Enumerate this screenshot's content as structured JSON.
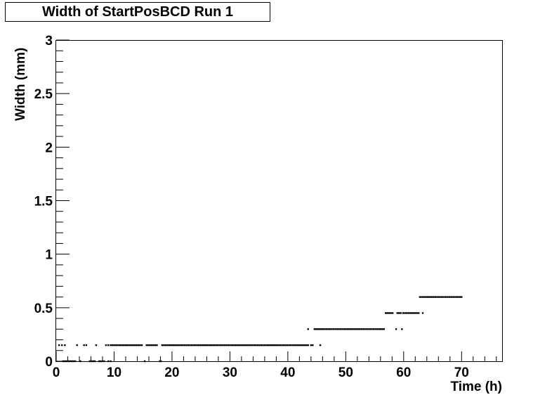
{
  "title": "Width of StartPosBCD Run 1",
  "chart_data": {
    "type": "scatter",
    "title": "Width of StartPosBCD Run 1",
    "xlabel": "Time (h)",
    "ylabel": "Width (mm)",
    "xlim": [
      0,
      77
    ],
    "ylim": [
      0,
      3
    ],
    "x_ticks": [
      0,
      10,
      20,
      30,
      40,
      50,
      60,
      70
    ],
    "y_ticks": [
      0,
      0.5,
      1,
      1.5,
      2,
      2.5,
      3
    ],
    "x_tick_labels": [
      "0",
      "10",
      "20",
      "30",
      "40",
      "50",
      "60",
      "70"
    ],
    "y_tick_labels": [
      "0",
      "0.5",
      "1",
      "1.5",
      "2",
      "2.5",
      "3"
    ],
    "grid": false,
    "marker_color": "#000000",
    "series": [
      {
        "segments": [
          {
            "x_start": 0.5,
            "x_end": 1.8,
            "step": 0.5,
            "y": 0.15
          },
          {
            "x_start": 3.6,
            "x_end": 3.8,
            "step": 0.5,
            "y": 0.15
          },
          {
            "x_start": 4.8,
            "x_end": 5.2,
            "step": 0.4,
            "y": 0.15
          },
          {
            "x_start": 6.9,
            "x_end": 6.9,
            "step": 0.5,
            "y": 0.15
          },
          {
            "x_start": 8.6,
            "x_end": 9.4,
            "step": 0.4,
            "y": 0.15
          },
          {
            "x_start": 9.7,
            "x_end": 15.0,
            "step": 0.3,
            "y": 0.15
          },
          {
            "x_start": 15.6,
            "x_end": 17.6,
            "step": 0.3,
            "y": 0.15
          },
          {
            "x_start": 18.3,
            "x_end": 43.5,
            "step": 0.3,
            "y": 0.15
          },
          {
            "x_start": 44.0,
            "x_end": 44.3,
            "step": 0.3,
            "y": 0.15
          },
          {
            "x_start": 45.6,
            "x_end": 45.6,
            "step": 0.3,
            "y": 0.15
          },
          {
            "x_start": 1.2,
            "x_end": 3.3,
            "step": 0.3,
            "y": 0.0
          },
          {
            "x_start": 4.2,
            "x_end": 4.2,
            "step": 0.3,
            "y": 0.0
          },
          {
            "x_start": 5.8,
            "x_end": 6.8,
            "step": 0.3,
            "y": 0.0
          },
          {
            "x_start": 7.4,
            "x_end": 8.4,
            "step": 0.3,
            "y": 0.0
          },
          {
            "x_start": 9.0,
            "x_end": 9.4,
            "step": 0.4,
            "y": 0.0
          },
          {
            "x_start": 15.3,
            "x_end": 15.3,
            "step": 0.3,
            "y": 0.0
          },
          {
            "x_start": 17.9,
            "x_end": 18.1,
            "step": 0.2,
            "y": 0.0
          },
          {
            "x_start": 43.5,
            "x_end": 43.5,
            "step": 0.3,
            "y": 0.3
          },
          {
            "x_start": 44.6,
            "x_end": 56.8,
            "step": 0.3,
            "y": 0.3
          },
          {
            "x_start": 58.7,
            "x_end": 58.7,
            "step": 0.3,
            "y": 0.3
          },
          {
            "x_start": 59.7,
            "x_end": 59.7,
            "step": 0.3,
            "y": 0.3
          },
          {
            "x_start": 56.9,
            "x_end": 58.3,
            "step": 0.3,
            "y": 0.45
          },
          {
            "x_start": 58.9,
            "x_end": 59.5,
            "step": 0.3,
            "y": 0.45
          },
          {
            "x_start": 59.9,
            "x_end": 62.6,
            "step": 0.3,
            "y": 0.45
          },
          {
            "x_start": 63.3,
            "x_end": 63.3,
            "step": 0.3,
            "y": 0.45
          },
          {
            "x_start": 62.8,
            "x_end": 70.2,
            "step": 0.3,
            "y": 0.6
          }
        ]
      }
    ]
  }
}
